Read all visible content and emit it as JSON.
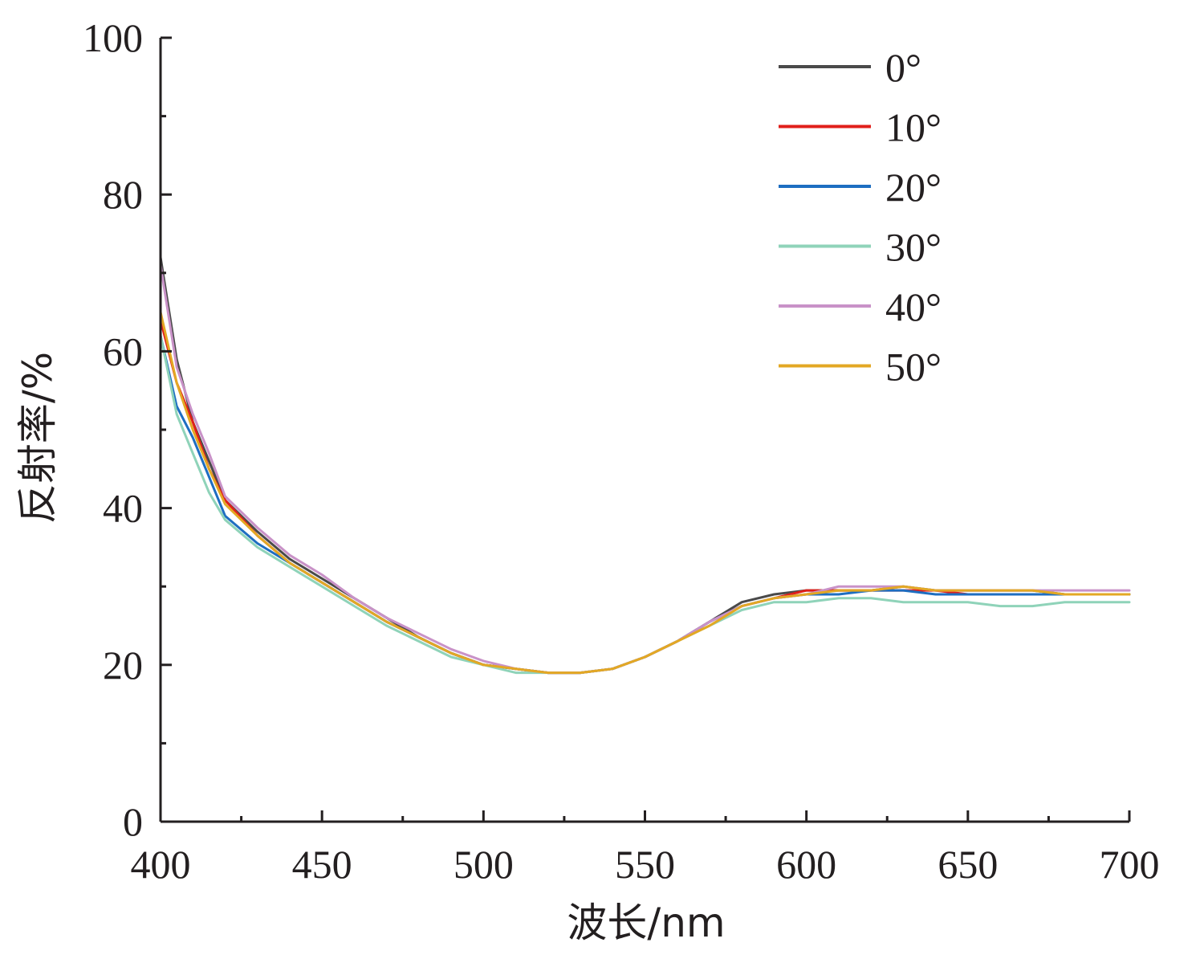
{
  "chart_data": {
    "type": "line",
    "xlabel": "波长/nm",
    "ylabel": "反射率/%",
    "xlim": [
      400,
      700
    ],
    "ylim": [
      0,
      100
    ],
    "x_ticks": [
      400,
      450,
      500,
      550,
      600,
      650,
      700
    ],
    "y_ticks": [
      0,
      20,
      40,
      60,
      80,
      100
    ],
    "x_minor_step": 25,
    "y_minor_step": 10,
    "grid": false,
    "legend_position": "top-right",
    "x": [
      400,
      405,
      410,
      415,
      420,
      430,
      440,
      450,
      460,
      470,
      480,
      490,
      500,
      510,
      520,
      530,
      540,
      550,
      560,
      570,
      580,
      590,
      600,
      610,
      620,
      630,
      640,
      650,
      660,
      670,
      680,
      690,
      700
    ],
    "series": [
      {
        "name": "0°",
        "color": "#4a4a4a",
        "values": [
          72,
          59,
          51,
          46,
          41,
          37,
          33.5,
          31,
          28.5,
          26,
          23.5,
          21.5,
          20,
          19.5,
          19,
          19,
          19.5,
          21,
          23,
          25.5,
          28,
          29,
          29.5,
          29.5,
          29.5,
          30,
          29.5,
          29.5,
          29.5,
          29.5,
          29,
          29,
          29
        ]
      },
      {
        "name": "10°",
        "color": "#e0201b",
        "values": [
          64,
          56,
          51,
          45,
          41,
          36.5,
          33,
          30.5,
          28,
          25.5,
          23.5,
          21.5,
          20,
          19.5,
          19,
          19,
          19.5,
          21,
          23,
          25.5,
          27.5,
          28.5,
          29.5,
          29.5,
          29.5,
          29.5,
          29.5,
          29,
          29,
          29,
          29,
          29,
          29
        ]
      },
      {
        "name": "20°",
        "color": "#1e6ec1",
        "values": [
          62,
          53,
          49,
          44,
          39,
          35.5,
          33,
          30.5,
          28,
          25.5,
          23.5,
          21.5,
          20,
          19.5,
          19,
          19,
          19.5,
          21,
          23,
          25.5,
          27.5,
          28.5,
          29,
          29,
          29.5,
          29.5,
          29,
          29,
          29,
          29,
          29,
          29,
          29
        ]
      },
      {
        "name": "30°",
        "color": "#8fd3b9",
        "values": [
          62,
          52,
          47,
          42,
          38.5,
          35,
          32.5,
          30,
          27.5,
          25,
          23,
          21,
          20,
          19,
          19,
          19,
          19.5,
          21,
          23,
          25,
          27,
          28,
          28,
          28.5,
          28.5,
          28,
          28,
          28,
          27.5,
          27.5,
          28,
          28,
          28
        ]
      },
      {
        "name": "40°",
        "color": "#c992c8",
        "values": [
          71,
          58,
          52,
          47,
          41.5,
          37.5,
          34,
          31.5,
          28.5,
          26,
          24,
          22,
          20.5,
          19.5,
          19,
          19,
          19.5,
          21,
          23,
          25.5,
          27.5,
          28.5,
          29,
          30,
          30,
          30,
          29.5,
          29.5,
          29.5,
          29.5,
          29.5,
          29.5,
          29.5
        ]
      },
      {
        "name": "50°",
        "color": "#e3a824",
        "values": [
          65,
          56,
          50,
          45,
          40.5,
          36.5,
          33,
          30.5,
          28,
          25.5,
          23.5,
          21.5,
          20,
          19.5,
          19,
          19,
          19.5,
          21,
          23,
          25,
          27.5,
          28.5,
          29,
          29.5,
          29.5,
          30,
          29.5,
          29.5,
          29.5,
          29.5,
          29,
          29,
          29
        ]
      }
    ]
  }
}
